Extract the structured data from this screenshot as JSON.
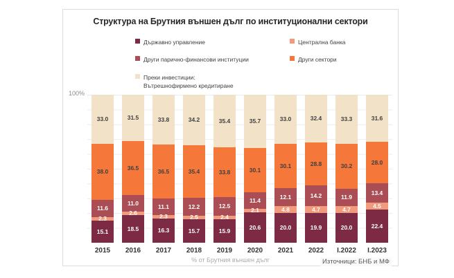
{
  "chart": {
    "title": "Структура на Брутния външен дълг по институционални сектори",
    "y_top_label": "100%",
    "x_caption": "% от Брутния външен дълг",
    "source": "Източници: БНБ и МФ"
  },
  "chart_data": {
    "type": "bar",
    "stacked": true,
    "title": "Структура на Брутния външен дълг по институционални сектори",
    "xlabel": "% от Брутния външен дълг",
    "ylabel": "",
    "ylim": [
      0,
      100
    ],
    "grid": true,
    "legend_position": "top",
    "categories": [
      "2015",
      "2016",
      "2017",
      "2018",
      "2019",
      "2020",
      "2021",
      "2022",
      "I.2022",
      "I.2023"
    ],
    "series": [
      {
        "name": "Държавно управление",
        "legend_label": "Държавно управление",
        "color": "#7d2a45",
        "label_color": "#ffffff",
        "values": [
          15.1,
          18.5,
          16.3,
          15.7,
          15.9,
          20.6,
          20.0,
          19.9,
          20.0,
          22.4
        ]
      },
      {
        "name": "Централна банка",
        "legend_label": "Централна банка",
        "color": "#f29a7c",
        "label_color": "#ffffff",
        "values": [
          2.3,
          2.6,
          2.3,
          2.5,
          2.4,
          2.1,
          4.8,
          4.7,
          4.7,
          4.5
        ]
      },
      {
        "name": "Други парично-финансови институции",
        "legend_label": "Други парично-финансови  институции",
        "color": "#aa4d54",
        "label_color": "#ffffff",
        "values": [
          11.6,
          11.0,
          11.1,
          12.2,
          12.5,
          11.4,
          12.1,
          14.2,
          11.9,
          13.4
        ]
      },
      {
        "name": "Други сектори",
        "legend_label": "Други сектори",
        "color": "#f5783a",
        "label_color": "#3f3f3f",
        "values": [
          38.0,
          36.5,
          36.5,
          35.4,
          33.8,
          30.1,
          30.1,
          28.8,
          30.2,
          28.0
        ]
      },
      {
        "name": "Преки инвестиции: Вътрешнофирмено кредитиране",
        "legend_label": "Преки инвестиции:\nВътрешнофирмено  кредитиране",
        "color": "#f2e3c8",
        "label_color": "#3f3f3f",
        "values": [
          33.0,
          31.5,
          33.8,
          34.2,
          35.4,
          35.7,
          33.0,
          32.4,
          33.3,
          31.6
        ]
      }
    ]
  }
}
